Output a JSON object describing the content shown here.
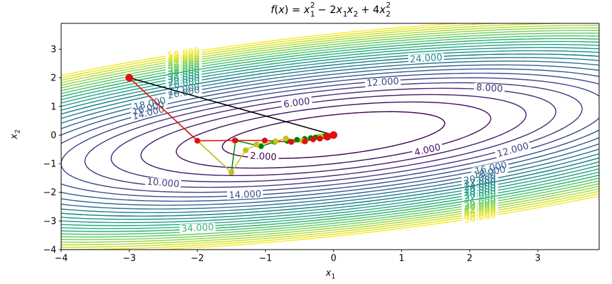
{
  "title": {
    "plain": "f(x) = x1^2 - 2x1x2 + 4x2^2",
    "formula": [
      {
        "t": "f",
        "i": true
      },
      {
        "t": "("
      },
      {
        "t": "x",
        "i": true
      },
      {
        "t": ") = "
      },
      {
        "t": "x",
        "i": true,
        "sub": "1",
        "sup": "2"
      },
      {
        "t": " − 2"
      },
      {
        "t": "x",
        "i": true,
        "sub": "1"
      },
      {
        "t": "x",
        "i": true,
        "sub": "2"
      },
      {
        "t": " + 4"
      },
      {
        "t": "x",
        "i": true,
        "sub": "2",
        "sup": "2"
      }
    ]
  },
  "axes": {
    "xlabel": {
      "t": "x",
      "sub": "1"
    },
    "ylabel": {
      "t": "x",
      "sub": "2"
    },
    "x_tick_labels": [
      "−4",
      "−3",
      "−2",
      "−1",
      "0",
      "1",
      "2",
      "3"
    ],
    "y_tick_labels": [
      "3",
      "2",
      "1",
      "0",
      "−1",
      "−2",
      "−3",
      "−4"
    ]
  },
  "chart_data": {
    "type": "contour",
    "function": "f(x) = x1^2 - 2*x1*x2 + 4*x2^2",
    "quadratic": {
      "a": 1,
      "b": -2,
      "c": 4
    },
    "xlim": [
      -4,
      3.9
    ],
    "ylim": [
      -4,
      3.9
    ],
    "x_ticks": [
      -4,
      -3,
      -2,
      -1,
      0,
      1,
      2,
      3
    ],
    "y_ticks": [
      3,
      2,
      1,
      0,
      -1,
      -2,
      -3,
      -4
    ],
    "levels": [
      2,
      4,
      6,
      8,
      10,
      12,
      14,
      16,
      18,
      20,
      22,
      24,
      26,
      28,
      30,
      32,
      34,
      36,
      38,
      40,
      42,
      44,
      46,
      48,
      50
    ],
    "level_min": 2,
    "level_max": 50,
    "colormap": {
      "name": "viridis",
      "stops": [
        "#440154",
        "#482475",
        "#414487",
        "#355f8d",
        "#2a788e",
        "#21918c",
        "#22a884",
        "#44bf70",
        "#7ad151",
        "#bddf26",
        "#fde725"
      ]
    },
    "label_format_suffix": ".000",
    "contour_labels": {
      "singles": [
        {
          "level": 2,
          "x": -1.03,
          "y": -0.75
        },
        {
          "level": 4,
          "x": 1.38,
          "y": -0.519
        },
        {
          "level": 6,
          "x": -0.541,
          "y": 1.126
        },
        {
          "level": 8,
          "x": 2.29,
          "y": 1.642
        },
        {
          "level": 10,
          "x": -2.503,
          "y": -1.671
        },
        {
          "level": 12,
          "x": 0.723,
          "y": 1.846
        },
        {
          "level": 12,
          "x": 2.634,
          "y": -0.519
        },
        {
          "level": 14,
          "x": -1.299,
          "y": -2.079
        },
        {
          "level": 24,
          "x": 1.36,
          "y": 2.675
        },
        {
          "level": 34,
          "x": -1.997,
          "y": -3.244
        }
      ],
      "clusters": [
        {
          "anchor_x": -2.2,
          "branch": "upper",
          "levels": [
            14,
            16,
            18,
            20,
            22,
            26,
            28,
            30,
            32,
            34,
            36,
            38,
            40,
            42,
            44,
            46,
            48,
            50
          ],
          "anchor_overrides": {
            "14": -2.72,
            "16": -2.72,
            "18": -2.7
          }
        },
        {
          "anchor_x": 2.15,
          "branch": "lower",
          "levels": [
            16,
            18,
            20,
            22,
            24,
            26,
            28,
            30,
            32,
            36,
            38,
            40,
            42,
            44,
            46,
            48,
            50
          ],
          "anchor_overrides": {
            "16": 2.31,
            "18": 2.29
          }
        }
      ],
      "redraw_over_band": [
        24,
        34
      ]
    },
    "paths": [
      {
        "name": "newton-path",
        "color": "#000000",
        "lw": 1.6,
        "marker": false,
        "points": [
          [
            -3,
            2
          ],
          [
            0,
            0
          ]
        ]
      },
      {
        "name": "gd-green-path",
        "color": "#008000",
        "lw": 1.5,
        "marker": true,
        "r": 4.0,
        "points": [
          [
            -3,
            2
          ],
          [
            -1.5,
            -1.3
          ],
          [
            -1.44,
            -0.19
          ],
          [
            -1.065,
            -0.394
          ],
          [
            -0.864,
            -0.241
          ],
          [
            -0.677,
            -0.211
          ],
          [
            -0.537,
            -0.161
          ],
          [
            -0.424,
            -0.129
          ],
          [
            -0.336,
            -0.102
          ],
          [
            -0.265,
            -0.08
          ],
          [
            -0.21,
            -0.064
          ],
          [
            -0.166,
            -0.05
          ],
          [
            -0.131,
            -0.04
          ],
          [
            -0.104,
            -0.031
          ],
          [
            -0.082,
            -0.025
          ],
          [
            0,
            0
          ]
        ]
      },
      {
        "name": "gd-olive-path",
        "color": "#c3c31d",
        "lw": 1.5,
        "marker": true,
        "r": 4.2,
        "points": [
          [
            -3,
            2
          ],
          [
            -1.5,
            -1.3
          ],
          [
            -1.29,
            -0.53
          ],
          [
            -1.13,
            -0.33
          ],
          [
            -0.85,
            -0.22
          ],
          [
            -0.7,
            -0.12
          ],
          [
            -0.46,
            -0.2
          ],
          [
            -0.19,
            -0.05
          ],
          [
            0,
            0
          ]
        ]
      },
      {
        "name": "gd-red-path",
        "color": "#e60d0d",
        "lw": 1.6,
        "marker": true,
        "r": 4.2,
        "points": [
          [
            -3,
            2
          ],
          [
            -2,
            -0.2
          ],
          [
            -1.45,
            -0.19
          ],
          [
            -1.01,
            -0.19
          ],
          [
            -0.62,
            -0.24
          ],
          [
            -0.42,
            -0.22
          ],
          [
            -0.3,
            -0.15
          ],
          [
            -0.2,
            -0.125
          ],
          [
            -0.09,
            -0.055
          ],
          [
            0,
            0
          ]
        ],
        "big_start": true,
        "big_end": 2,
        "big_r": 5.5
      }
    ]
  }
}
